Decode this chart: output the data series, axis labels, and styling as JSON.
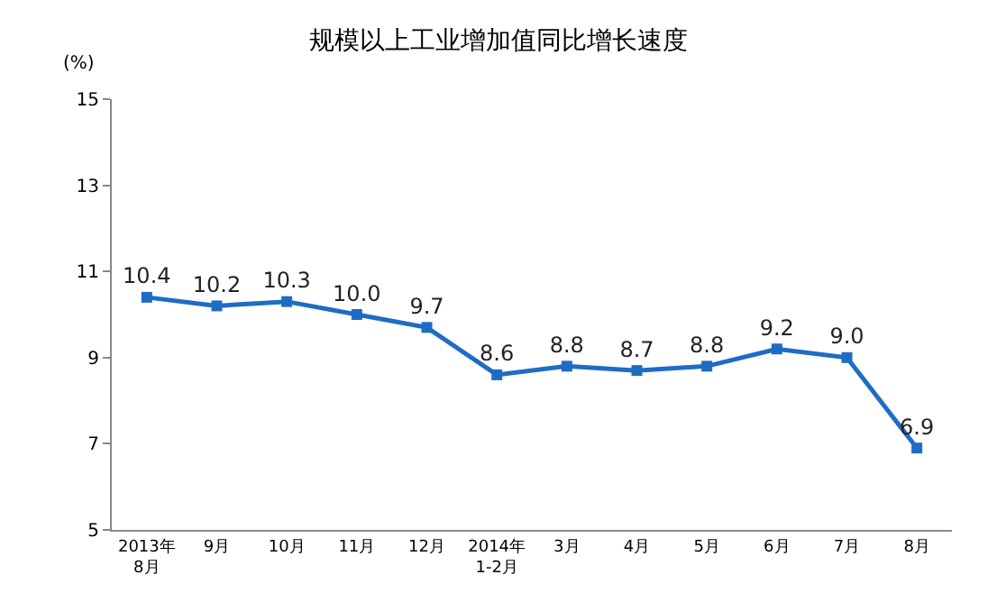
{
  "chart_data": {
    "type": "line",
    "title": "规模以上工业增加值同比增长速度",
    "ylabel": "(%)",
    "categories": [
      "2013年\n8月",
      "9月",
      "10月",
      "11月",
      "12月",
      "2014年\n1-2月",
      "3月",
      "4月",
      "5月",
      "6月",
      "7月",
      "8月"
    ],
    "series": [
      {
        "color": "#1f6cc4",
        "values": [
          10.4,
          10.2,
          10.3,
          10.0,
          9.7,
          8.6,
          8.8,
          8.7,
          8.8,
          9.2,
          9.0,
          6.9
        ]
      }
    ],
    "value_labels": [
      "10.4",
      "10.2",
      "10.3",
      "10.0",
      "9.7",
      "8.6",
      "8.8",
      "8.7",
      "8.8",
      "9.2",
      "9.0",
      "6.9"
    ],
    "ylim": [
      5,
      15
    ],
    "yticks": [
      5,
      7,
      9,
      11,
      13,
      15
    ],
    "marker": "square",
    "line_style": "solid",
    "legend": false
  }
}
